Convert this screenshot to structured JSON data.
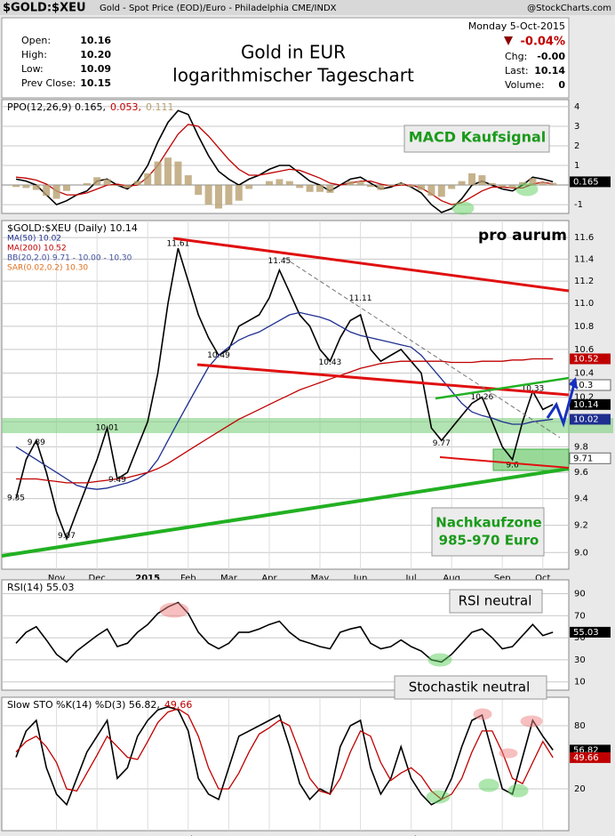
{
  "header": {
    "symbol": "$GOLD:$XEU",
    "description": "Gold - Spot Price (EOD)/Euro - Philadelphia CME/INDX",
    "source": "@StockCharts.com"
  },
  "quote": {
    "left": [
      [
        "Open:",
        "10.16"
      ],
      [
        "High:",
        "10.20"
      ],
      [
        "Low:",
        "10.09"
      ],
      [
        "Prev Close:",
        "10.15"
      ]
    ],
    "date": "Monday  5-Oct-2015",
    "change": "-0.04%",
    "right": [
      [
        "Chg:",
        "-0.00"
      ],
      [
        "Last:",
        "10.14"
      ],
      [
        "Volume:",
        "0"
      ]
    ]
  },
  "chart_data": [
    {
      "type": "line",
      "title": "Gold in EUR",
      "subtitle": "logarithmischer Tageschart",
      "log_scale": true,
      "grid": true,
      "legend": "stacked",
      "ylim": [
        8.88,
        11.76
      ],
      "yticks": [
        {
          "value": 9,
          "label": "9.0"
        },
        9.2,
        9.4,
        9.6,
        9.8,
        {
          "value": 10,
          "label": "10.0"
        },
        10.2,
        10.4,
        10.6,
        10.8,
        {
          "value": 11,
          "label": "11.0"
        },
        11.2,
        11.4,
        11.6
      ],
      "categories": [
        null,
        null,
        null,
        null,
        "Nov",
        null,
        null,
        null,
        "Dec",
        null,
        null,
        null,
        null,
        "2015",
        null,
        null,
        null,
        "Feb",
        null,
        null,
        null,
        "Mar",
        null,
        null,
        null,
        "Apr",
        null,
        null,
        null,
        null,
        "May",
        null,
        null,
        null,
        "Jun",
        null,
        null,
        null,
        null,
        "Jul",
        null,
        null,
        null,
        "Aug",
        null,
        null,
        null,
        null,
        "Sep",
        null,
        null,
        null,
        "Oct",
        null
      ],
      "series": [
        {
          "name": "$GOLD:$XEU (Daily) 10.14",
          "color": "#000000",
          "tag_last": true,
          "values": [
            9.4,
            9.7,
            9.85,
            9.6,
            9.3,
            9.1,
            9.3,
            9.5,
            9.7,
            9.95,
            9.55,
            9.6,
            9.8,
            10.0,
            10.4,
            11.0,
            11.5,
            11.2,
            10.9,
            10.7,
            10.55,
            10.6,
            10.8,
            10.85,
            10.9,
            11.05,
            11.3,
            11.1,
            10.9,
            10.8,
            10.6,
            10.5,
            10.7,
            10.85,
            10.9,
            10.6,
            10.5,
            10.55,
            10.6,
            10.5,
            10.4,
            9.95,
            9.85,
            9.95,
            10.05,
            10.15,
            10.2,
            10.0,
            9.8,
            9.7,
            10.0,
            10.25,
            10.1,
            10.14
          ]
        },
        {
          "name": "MA(50) 10.02",
          "color": "#1f2f8f",
          "tag_last": true,
          "values": [
            9.8,
            9.75,
            9.7,
            9.65,
            9.6,
            9.55,
            9.5,
            9.48,
            9.47,
            9.48,
            9.5,
            9.52,
            9.55,
            9.6,
            9.7,
            9.85,
            10.0,
            10.15,
            10.3,
            10.45,
            10.55,
            10.62,
            10.68,
            10.72,
            10.75,
            10.8,
            10.85,
            10.9,
            10.92,
            10.9,
            10.88,
            10.85,
            10.8,
            10.75,
            10.72,
            10.7,
            10.68,
            10.66,
            10.64,
            10.62,
            10.55,
            10.45,
            10.35,
            10.25,
            10.15,
            10.08,
            10.05,
            10.03,
            10.0,
            9.98,
            9.98,
            10.0,
            10.01,
            10.02
          ]
        },
        {
          "name": "MA(200) 10.52",
          "color": "#c00000",
          "tag_last": true,
          "values": [
            9.55,
            9.55,
            9.55,
            9.54,
            9.53,
            9.52,
            9.52,
            9.52,
            9.53,
            9.54,
            9.55,
            9.56,
            9.58,
            9.6,
            9.63,
            9.67,
            9.72,
            9.77,
            9.82,
            9.87,
            9.92,
            9.97,
            10.02,
            10.06,
            10.1,
            10.14,
            10.18,
            10.22,
            10.26,
            10.29,
            10.32,
            10.35,
            10.38,
            10.41,
            10.44,
            10.46,
            10.48,
            10.49,
            10.5,
            10.5,
            10.5,
            10.5,
            10.5,
            10.49,
            10.49,
            10.49,
            10.5,
            10.5,
            10.5,
            10.51,
            10.51,
            10.52,
            10.52,
            10.52
          ]
        }
      ],
      "legend_extra": [
        "BB(20,2.0) 9.71 - 10.00 - 10.30",
        "SAR(0.02,0.2) 10.30"
      ],
      "right_labels": [
        10.3,
        9.71
      ],
      "price_labels": {
        "x": [
          0,
          2,
          5,
          9,
          10,
          16,
          20,
          26,
          31,
          34,
          42,
          46,
          49,
          51
        ],
        "values": [
          9.35,
          9.89,
          9.07,
          10.01,
          9.49,
          11.61,
          10.49,
          11.45,
          10.43,
          11.11,
          9.77,
          10.26,
          9.6,
          10.33
        ]
      },
      "annotations": [
        "pro aurum",
        "Nachkaufzone",
        "985-970 Euro"
      ]
    },
    {
      "type": "line",
      "legend": "inline",
      "grid": true,
      "ylim": [
        -1.45,
        4.36
      ],
      "yticks": [
        -1,
        1,
        2,
        3,
        4
      ],
      "series": [
        {
          "name": "PPO(12,26,9) 0.165,",
          "color": "#000000",
          "tag_last": true,
          "values": [
            0.3,
            0.2,
            0,
            -0.5,
            -1.0,
            -0.8,
            -0.5,
            -0.3,
            0.2,
            0.3,
            0,
            -0.2,
            0.2,
            1.0,
            2.2,
            3.2,
            3.8,
            3.6,
            2.5,
            1.5,
            0.7,
            0.3,
            0,
            0.3,
            0.5,
            0.8,
            1.0,
            1.0,
            0.6,
            0.2,
            0,
            -0.3,
            0,
            0.3,
            0.4,
            0.1,
            -0.2,
            -0.1,
            0.1,
            -0.1,
            -0.4,
            -1.0,
            -1.4,
            -1.2,
            -0.7,
            0,
            0.2,
            0,
            -0.2,
            -0.3,
            0,
            0.4,
            0.3,
            0.165
          ]
        },
        {
          "name": "0.053,",
          "color": "#c00000",
          "values": [
            0.4,
            0.35,
            0.25,
            0.05,
            -0.3,
            -0.5,
            -0.5,
            -0.4,
            -0.2,
            0,
            0.05,
            -0.05,
            0,
            0.4,
            1.0,
            1.8,
            2.6,
            3.1,
            3.0,
            2.5,
            1.9,
            1.3,
            0.8,
            0.5,
            0.5,
            0.6,
            0.7,
            0.8,
            0.75,
            0.55,
            0.35,
            0.1,
            0,
            0.1,
            0.2,
            0.2,
            0.05,
            -0.05,
            0,
            0,
            -0.15,
            -0.45,
            -0.8,
            -1.0,
            -0.9,
            -0.6,
            -0.3,
            -0.1,
            -0.1,
            -0.15,
            -0.15,
            0.05,
            0.15,
            0.053
          ]
        },
        {
          "name": "0.111",
          "color": "#b8a070",
          "type": "bar",
          "values": [
            -0.1,
            -0.15,
            -0.25,
            -0.55,
            -0.7,
            -0.3,
            0,
            0.1,
            0.4,
            0.3,
            -0.05,
            -0.15,
            0.2,
            0.6,
            1.2,
            1.4,
            1.2,
            0.5,
            -0.5,
            -1.0,
            -1.2,
            -1.0,
            -0.8,
            -0.2,
            0,
            0.2,
            0.3,
            0.2,
            -0.15,
            -0.35,
            -0.35,
            -0.4,
            0,
            0.2,
            0.2,
            -0.1,
            -0.25,
            -0.05,
            0.1,
            -0.1,
            -0.25,
            -0.55,
            -0.6,
            -0.2,
            0.2,
            0.6,
            0.5,
            0.1,
            -0.1,
            -0.15,
            0.15,
            0.35,
            0.15,
            0.111
          ]
        }
      ],
      "annotations": [
        "MACD Kaufsignal"
      ]
    },
    {
      "type": "line",
      "legend": "stacked",
      "grid": true,
      "ylim": [
        2.5,
        102.5
      ],
      "yticks": [
        10,
        30,
        50,
        70,
        90
      ],
      "series": [
        {
          "name": "RSI(14) 55.03",
          "color": "#000000",
          "tag_last": true,
          "values": [
            45,
            55,
            60,
            48,
            35,
            28,
            38,
            45,
            52,
            58,
            42,
            45,
            55,
            62,
            72,
            78,
            82,
            72,
            55,
            45,
            40,
            45,
            55,
            55,
            58,
            62,
            65,
            55,
            48,
            45,
            42,
            40,
            55,
            58,
            60,
            45,
            40,
            42,
            48,
            42,
            38,
            30,
            28,
            35,
            45,
            55,
            58,
            50,
            40,
            42,
            52,
            62,
            52,
            55.03
          ]
        }
      ],
      "annotations": [
        "RSI neutral"
      ]
    },
    {
      "type": "line",
      "legend": "inline",
      "grid": true,
      "ylim": [
        -19.7,
        107
      ],
      "yticks": [
        20,
        80
      ],
      "categories": [
        null,
        null,
        null,
        null,
        "Nov",
        null,
        null,
        null,
        "Dec",
        null,
        null,
        null,
        null,
        "2015",
        null,
        null,
        null,
        "Feb",
        null,
        null,
        null,
        "Mar",
        null,
        null,
        null,
        "Apr",
        null,
        null,
        null,
        null,
        "May",
        null,
        null,
        null,
        "Jun",
        null,
        null,
        null,
        null,
        "Jul",
        null,
        null,
        null,
        "Aug",
        null,
        null,
        null,
        null,
        "Sep",
        null,
        null,
        null,
        "Oct",
        null
      ],
      "series": [
        {
          "name": "Slow STO %K(14) %D(3) 56.82,",
          "color": "#000000",
          "tag_last": true,
          "values": [
            50,
            75,
            85,
            40,
            15,
            5,
            30,
            55,
            70,
            85,
            30,
            40,
            70,
            85,
            95,
            98,
            95,
            75,
            30,
            15,
            10,
            40,
            70,
            75,
            80,
            85,
            90,
            60,
            25,
            10,
            20,
            15,
            60,
            80,
            85,
            40,
            15,
            30,
            60,
            30,
            15,
            5,
            10,
            30,
            60,
            85,
            90,
            55,
            20,
            15,
            50,
            85,
            70,
            56.82
          ]
        },
        {
          "name": "49.66",
          "color": "#c00000",
          "tag_last": true,
          "values": [
            55,
            65,
            70,
            60,
            45,
            20,
            18,
            35,
            52,
            70,
            60,
            50,
            48,
            65,
            83,
            93,
            96,
            90,
            70,
            40,
            20,
            20,
            35,
            55,
            72,
            78,
            85,
            80,
            55,
            30,
            18,
            15,
            30,
            55,
            75,
            70,
            45,
            28,
            35,
            40,
            32,
            18,
            10,
            15,
            30,
            55,
            75,
            75,
            55,
            30,
            25,
            45,
            65,
            49.66
          ]
        }
      ],
      "annotations": [
        "Stochastik neutral"
      ]
    }
  ]
}
